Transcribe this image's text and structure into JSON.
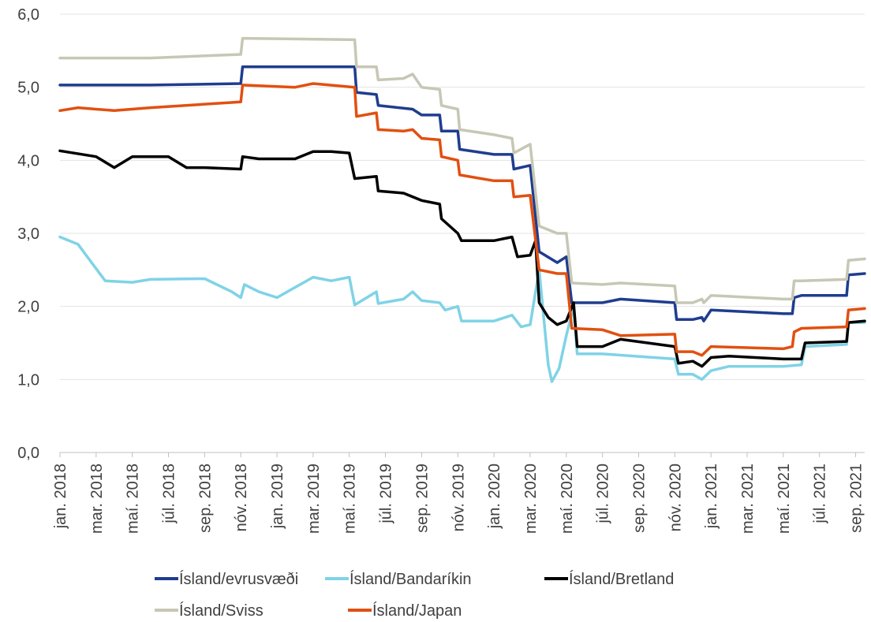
{
  "chart_data": {
    "type": "line",
    "title": "",
    "xlabel": "",
    "ylabel": "",
    "ylim": [
      0,
      6
    ],
    "yticks": [
      "0,0",
      "1,0",
      "2,0",
      "3,0",
      "4,0",
      "5,0",
      "6,0"
    ],
    "grid": "horizontal",
    "legend_position": "bottom",
    "x_tick_labels": [
      "jan. 2018",
      "mar. 2018",
      "maí. 2018",
      "júl. 2018",
      "sep. 2018",
      "nóv. 2018",
      "jan. 2019",
      "mar. 2019",
      "maí. 2019",
      "júl. 2019",
      "sep. 2019",
      "nóv. 2019",
      "jan. 2020",
      "mar. 2020",
      "maí. 2020",
      "júl. 2020",
      "sep. 2020",
      "nóv. 2020",
      "jan. 2021",
      "mar. 2021",
      "maí. 2021",
      "júl. 2021",
      "sep. 2021"
    ],
    "x_months": [
      0,
      2,
      4,
      6,
      8,
      10,
      12,
      14,
      16,
      18,
      20,
      22,
      24,
      26,
      28,
      30,
      32,
      34,
      36,
      38,
      40,
      42,
      44
    ],
    "x_range_months": [
      0,
      44.5
    ],
    "series": [
      {
        "name": "Ísland/evrusvæði",
        "color": "#1f3d8f",
        "points": [
          [
            0,
            5.03
          ],
          [
            5,
            5.03
          ],
          [
            10,
            5.05
          ],
          [
            10.1,
            5.28
          ],
          [
            16.3,
            5.28
          ],
          [
            16.4,
            4.93
          ],
          [
            17.5,
            4.9
          ],
          [
            17.6,
            4.75
          ],
          [
            19.5,
            4.7
          ],
          [
            20,
            4.62
          ],
          [
            21,
            4.62
          ],
          [
            21.1,
            4.4
          ],
          [
            22,
            4.4
          ],
          [
            22.1,
            4.15
          ],
          [
            24,
            4.08
          ],
          [
            25,
            4.08
          ],
          [
            25.1,
            3.88
          ],
          [
            26,
            3.93
          ],
          [
            26.5,
            2.75
          ],
          [
            27.5,
            2.6
          ],
          [
            28,
            2.68
          ],
          [
            28.3,
            2.05
          ],
          [
            30,
            2.05
          ],
          [
            31,
            2.1
          ],
          [
            34,
            2.05
          ],
          [
            34.1,
            1.82
          ],
          [
            35,
            1.82
          ],
          [
            35.5,
            1.85
          ],
          [
            35.6,
            1.8
          ],
          [
            36,
            1.95
          ],
          [
            40,
            1.9
          ],
          [
            40.5,
            1.9
          ],
          [
            40.6,
            2.12
          ],
          [
            41,
            2.15
          ],
          [
            43.5,
            2.15
          ],
          [
            43.6,
            2.43
          ],
          [
            44.5,
            2.45
          ]
        ]
      },
      {
        "name": "Ísland/Bandaríkin",
        "color": "#7fd3e6",
        "points": [
          [
            0,
            2.95
          ],
          [
            1,
            2.85
          ],
          [
            2.5,
            2.35
          ],
          [
            4,
            2.33
          ],
          [
            5,
            2.37
          ],
          [
            8,
            2.38
          ],
          [
            9.5,
            2.2
          ],
          [
            10,
            2.12
          ],
          [
            10.2,
            2.3
          ],
          [
            11,
            2.2
          ],
          [
            12,
            2.12
          ],
          [
            14,
            2.4
          ],
          [
            15,
            2.35
          ],
          [
            16,
            2.4
          ],
          [
            16.3,
            2.02
          ],
          [
            17.5,
            2.2
          ],
          [
            17.6,
            2.04
          ],
          [
            19,
            2.1
          ],
          [
            19.5,
            2.2
          ],
          [
            20,
            2.08
          ],
          [
            21,
            2.05
          ],
          [
            21.3,
            1.95
          ],
          [
            22,
            2.0
          ],
          [
            22.2,
            1.8
          ],
          [
            23,
            1.8
          ],
          [
            24,
            1.8
          ],
          [
            25,
            1.88
          ],
          [
            25.5,
            1.72
          ],
          [
            26,
            1.75
          ],
          [
            26.5,
            2.5
          ],
          [
            27,
            1.2
          ],
          [
            27.2,
            0.97
          ],
          [
            27.6,
            1.15
          ],
          [
            28,
            1.6
          ],
          [
            28.4,
            2.0
          ],
          [
            28.6,
            1.35
          ],
          [
            30,
            1.35
          ],
          [
            34,
            1.28
          ],
          [
            34.2,
            1.07
          ],
          [
            35,
            1.07
          ],
          [
            35.5,
            1.0
          ],
          [
            36,
            1.12
          ],
          [
            37,
            1.18
          ],
          [
            40,
            1.18
          ],
          [
            41,
            1.2
          ],
          [
            41.2,
            1.45
          ],
          [
            43.5,
            1.48
          ],
          [
            43.6,
            1.78
          ],
          [
            44.5,
            1.78
          ]
        ]
      },
      {
        "name": "Ísland/Bretland",
        "color": "#000000",
        "points": [
          [
            0,
            4.13
          ],
          [
            2,
            4.05
          ],
          [
            3,
            3.9
          ],
          [
            4,
            4.05
          ],
          [
            6,
            4.05
          ],
          [
            7,
            3.9
          ],
          [
            8,
            3.9
          ],
          [
            10,
            3.88
          ],
          [
            10.1,
            4.05
          ],
          [
            11,
            4.02
          ],
          [
            13,
            4.02
          ],
          [
            14,
            4.12
          ],
          [
            15,
            4.12
          ],
          [
            16,
            4.1
          ],
          [
            16.3,
            3.75
          ],
          [
            17.5,
            3.78
          ],
          [
            17.6,
            3.58
          ],
          [
            19,
            3.55
          ],
          [
            20,
            3.45
          ],
          [
            21,
            3.4
          ],
          [
            21.1,
            3.2
          ],
          [
            22,
            3.0
          ],
          [
            22.2,
            2.9
          ],
          [
            24,
            2.9
          ],
          [
            25,
            2.95
          ],
          [
            25.3,
            2.68
          ],
          [
            26,
            2.7
          ],
          [
            26.3,
            2.9
          ],
          [
            26.5,
            2.05
          ],
          [
            27,
            1.85
          ],
          [
            27.5,
            1.75
          ],
          [
            28,
            1.8
          ],
          [
            28.4,
            2.05
          ],
          [
            28.6,
            1.45
          ],
          [
            30,
            1.45
          ],
          [
            31,
            1.55
          ],
          [
            34,
            1.45
          ],
          [
            34.2,
            1.22
          ],
          [
            35,
            1.25
          ],
          [
            35.5,
            1.18
          ],
          [
            36,
            1.3
          ],
          [
            37,
            1.32
          ],
          [
            40,
            1.28
          ],
          [
            41,
            1.28
          ],
          [
            41.2,
            1.5
          ],
          [
            43.5,
            1.52
          ],
          [
            43.6,
            1.78
          ],
          [
            44.5,
            1.8
          ]
        ]
      },
      {
        "name": "Ísland/Sviss",
        "color": "#c7c7b5",
        "points": [
          [
            0,
            5.4
          ],
          [
            5,
            5.4
          ],
          [
            10,
            5.45
          ],
          [
            10.1,
            5.67
          ],
          [
            16.3,
            5.65
          ],
          [
            16.4,
            5.28
          ],
          [
            17.5,
            5.28
          ],
          [
            17.6,
            5.1
          ],
          [
            19,
            5.12
          ],
          [
            19.5,
            5.18
          ],
          [
            20,
            5.0
          ],
          [
            21,
            4.97
          ],
          [
            21.1,
            4.75
          ],
          [
            22,
            4.7
          ],
          [
            22.1,
            4.42
          ],
          [
            24,
            4.35
          ],
          [
            25,
            4.3
          ],
          [
            25.1,
            4.1
          ],
          [
            26,
            4.22
          ],
          [
            26.5,
            3.1
          ],
          [
            27.5,
            3.0
          ],
          [
            28,
            3.0
          ],
          [
            28.3,
            2.32
          ],
          [
            30,
            2.3
          ],
          [
            31,
            2.32
          ],
          [
            34,
            2.28
          ],
          [
            34.1,
            2.05
          ],
          [
            35,
            2.05
          ],
          [
            35.5,
            2.1
          ],
          [
            35.6,
            2.05
          ],
          [
            36,
            2.15
          ],
          [
            40,
            2.1
          ],
          [
            40.5,
            2.1
          ],
          [
            40.6,
            2.35
          ],
          [
            41,
            2.35
          ],
          [
            43.5,
            2.37
          ],
          [
            43.6,
            2.63
          ],
          [
            44.5,
            2.65
          ]
        ]
      },
      {
        "name": "Ísland/Japan",
        "color": "#e15011",
        "points": [
          [
            0,
            4.68
          ],
          [
            1,
            4.72
          ],
          [
            3,
            4.68
          ],
          [
            5,
            4.72
          ],
          [
            10,
            4.8
          ],
          [
            10.1,
            5.03
          ],
          [
            13,
            5.0
          ],
          [
            14,
            5.05
          ],
          [
            16.3,
            5.0
          ],
          [
            16.4,
            4.6
          ],
          [
            17.5,
            4.65
          ],
          [
            17.6,
            4.42
          ],
          [
            19,
            4.4
          ],
          [
            19.5,
            4.42
          ],
          [
            20,
            4.3
          ],
          [
            21,
            4.28
          ],
          [
            21.1,
            4.05
          ],
          [
            22,
            4.0
          ],
          [
            22.1,
            3.8
          ],
          [
            24,
            3.72
          ],
          [
            25,
            3.72
          ],
          [
            25.1,
            3.5
          ],
          [
            26,
            3.52
          ],
          [
            26.5,
            2.5
          ],
          [
            27.5,
            2.45
          ],
          [
            28,
            2.45
          ],
          [
            28.3,
            1.7
          ],
          [
            30,
            1.68
          ],
          [
            31,
            1.6
          ],
          [
            34,
            1.62
          ],
          [
            34.1,
            1.38
          ],
          [
            35,
            1.38
          ],
          [
            35.5,
            1.33
          ],
          [
            36,
            1.45
          ],
          [
            40,
            1.42
          ],
          [
            40.5,
            1.45
          ],
          [
            40.6,
            1.65
          ],
          [
            41,
            1.7
          ],
          [
            43.5,
            1.72
          ],
          [
            43.6,
            1.95
          ],
          [
            44.5,
            1.97
          ]
        ]
      }
    ],
    "legend": [
      {
        "name": "Ísland/evrusvæði",
        "color": "#1f3d8f"
      },
      {
        "name": "Ísland/Bandaríkin",
        "color": "#7fd3e6"
      },
      {
        "name": "Ísland/Bretland",
        "color": "#000000"
      },
      {
        "name": "Ísland/Sviss",
        "color": "#c7c7b5"
      },
      {
        "name": "Ísland/Japan",
        "color": "#e15011"
      }
    ]
  }
}
